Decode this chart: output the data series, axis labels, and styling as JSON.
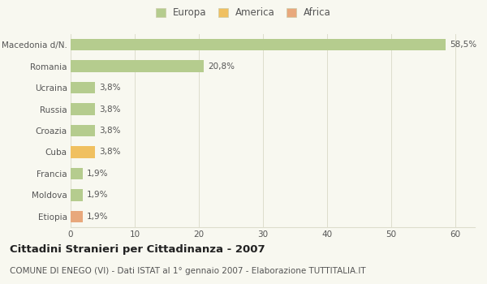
{
  "categories": [
    "Macedonia d/N.",
    "Romania",
    "Ucraina",
    "Russia",
    "Croazia",
    "Cuba",
    "Francia",
    "Moldova",
    "Etiopia"
  ],
  "values": [
    58.5,
    20.8,
    3.8,
    3.8,
    3.8,
    3.8,
    1.9,
    1.9,
    1.9
  ],
  "labels": [
    "58,5%",
    "20,8%",
    "3,8%",
    "3,8%",
    "3,8%",
    "3,8%",
    "1,9%",
    "1,9%",
    "1,9%"
  ],
  "colors": [
    "#b5cc8e",
    "#b5cc8e",
    "#b5cc8e",
    "#b5cc8e",
    "#b5cc8e",
    "#f0c060",
    "#b5cc8e",
    "#b5cc8e",
    "#e8a87c"
  ],
  "legend": [
    {
      "label": "Europa",
      "color": "#b5cc8e"
    },
    {
      "label": "America",
      "color": "#f0c060"
    },
    {
      "label": "Africa",
      "color": "#e8a87c"
    }
  ],
  "xlim": [
    0,
    63
  ],
  "xticks": [
    0,
    10,
    20,
    30,
    40,
    50,
    60
  ],
  "title": "Cittadini Stranieri per Cittadinanza - 2007",
  "subtitle": "COMUNE DI ENEGO (VI) - Dati ISTAT al 1° gennaio 2007 - Elaborazione TUTTITALIA.IT",
  "background_color": "#f8f8f0",
  "bar_height": 0.55,
  "title_fontsize": 9.5,
  "subtitle_fontsize": 7.5,
  "label_fontsize": 7.5,
  "tick_fontsize": 7.5,
  "legend_fontsize": 8.5,
  "grid_color": "#ddddcc",
  "text_color": "#555555",
  "title_color": "#222222"
}
